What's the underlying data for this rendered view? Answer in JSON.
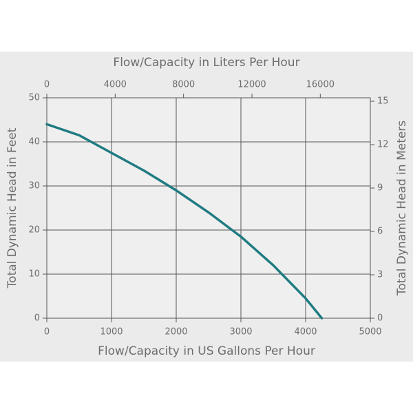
{
  "chart_data": {
    "type": "line",
    "x_label": "Flow/Capacity in US Gallons Per Hour",
    "x2_label": "Flow/Capacity in Liters Per Hour",
    "y_label": "Total Dynamic Head in Feet",
    "y2_label": "Total Dynamic Head in Meters",
    "xlim": [
      0,
      5000
    ],
    "xticks": [
      0,
      1000,
      2000,
      3000,
      4000,
      5000
    ],
    "x2lim": [
      0,
      18927
    ],
    "x2ticks": [
      0,
      4000,
      8000,
      12000,
      16000
    ],
    "ylim": [
      0,
      50
    ],
    "yticks": [
      0,
      10,
      20,
      30,
      40,
      50
    ],
    "y2lim": [
      0,
      15.24
    ],
    "y2ticks": [
      0,
      3,
      6,
      9,
      12,
      15
    ],
    "grid": true,
    "series": [
      {
        "color": "#1f7b82",
        "x": [
          0,
          500,
          1000,
          1500,
          2000,
          2500,
          3000,
          3500,
          4000,
          4250
        ],
        "values": [
          44,
          41.5,
          37.5,
          33.5,
          29,
          24,
          18.5,
          12,
          4.5,
          0
        ]
      }
    ]
  }
}
